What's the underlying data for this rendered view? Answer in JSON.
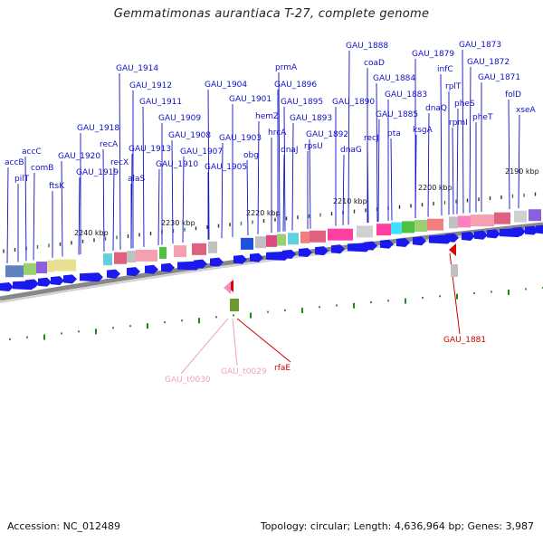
{
  "title": "Gemmatimonas aurantiaca T-27, complete genome",
  "footer": {
    "accession": "Accession: NC_012489",
    "summary": "Topology: circular; Length: 4,636,964 bp; Genes: 3,987"
  },
  "colors": {
    "gene_label": "#1010c8",
    "forward_arrow": "#1a1af0",
    "rna_red": "#cc0000",
    "rna_pink": "#f0a0c0",
    "backbone": "#888888"
  },
  "kbp_ticks": [
    "2240 kbp",
    "2230 kbp",
    "2220 kbp",
    "2210 kbp",
    "2200 kbp",
    "2190 kbp"
  ],
  "gene_labels": [
    "accB",
    "pilT",
    "accC",
    "comB",
    "ftsK",
    "GAU_1920",
    "GAU_1919",
    "GAU_1918",
    "recA",
    "recX",
    "alaS",
    "GAU_1914",
    "GAU_1913",
    "GAU_1912",
    "GAU_1911",
    "GAU_1910",
    "GAU_1909",
    "GAU_1908",
    "GAU_1907",
    "GAU_1905",
    "GAU_1904",
    "GAU_1903",
    "GAU_1901",
    "obg",
    "hemZ",
    "hrcA",
    "prmA",
    "dnaJ",
    "GAU_1896",
    "GAU_1895",
    "GAU_1893",
    "rpsU",
    "GAU_1892",
    "dnaG",
    "GAU_1890",
    "recJ",
    "GAU_1888",
    "coaD",
    "GAU_1884",
    "GAU_1885",
    "GAU_1883",
    "pta",
    "ksgA",
    "GAU_1879",
    "infC",
    "dnaQ",
    "rplT",
    "rpmI",
    "pheS",
    "pheT",
    "GAU_1873",
    "GAU_1872",
    "GAU_1871",
    "folD",
    "xseA"
  ],
  "rna_labels": [
    "GAU_1881",
    "GAU_t0030",
    "GAU_t0029",
    "rfaE"
  ]
}
